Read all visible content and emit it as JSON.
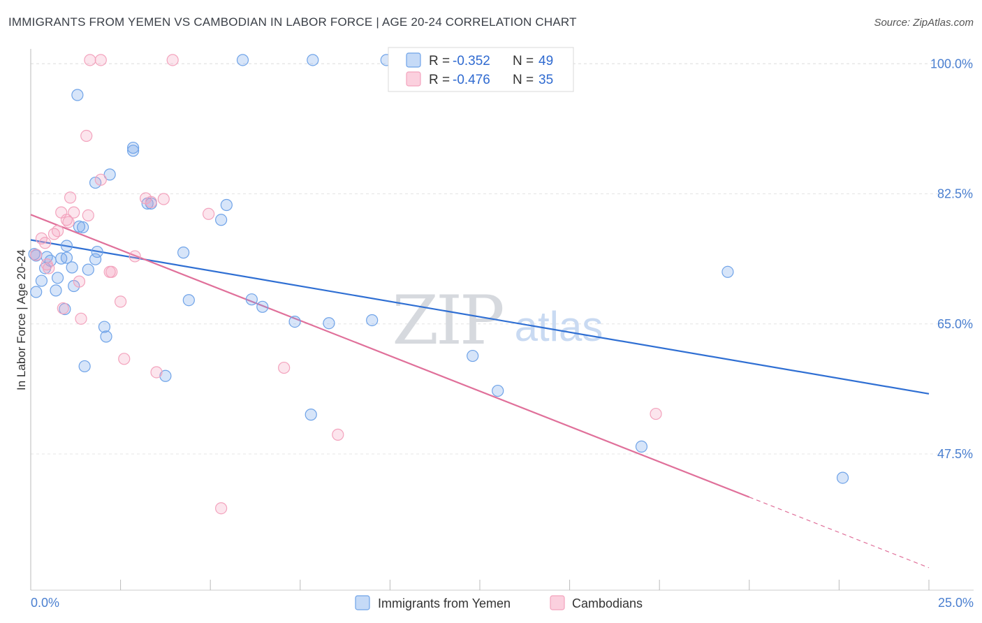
{
  "title": "IMMIGRANTS FROM YEMEN VS CAMBODIAN IN LABOR FORCE | AGE 20-24 CORRELATION CHART",
  "source": "Source: ZipAtlas.com",
  "watermark": {
    "zip": "ZIP",
    "atlas": "atlas"
  },
  "colors": {
    "blue": "#6fa3e8",
    "blue_line": "#2f6fd3",
    "pink": "#f3a3bd",
    "pink_line": "#e0709a",
    "tick": "#4a7fd0",
    "grid": "#e4e4e4"
  },
  "chart_data": {
    "type": "scatter",
    "title": "IMMIGRANTS FROM YEMEN VS CAMBODIAN IN LABOR FORCE | AGE 20-24 CORRELATION CHART",
    "ylabel": "In Labor Force | Age 20-24",
    "xlabel": "",
    "xlim": [
      0,
      25
    ],
    "ylim": [
      32,
      102
    ],
    "x_tick_labels": [
      "0.0%",
      "25.0%"
    ],
    "y_ticks": [
      47.5,
      65.0,
      82.5,
      100.0
    ],
    "y_tick_labels": [
      "47.5%",
      "65.0%",
      "82.5%",
      "100.0%"
    ],
    "grid": true,
    "legend_position": "top-center",
    "legend": [
      {
        "r_label": "R =",
        "r_value": "-0.352",
        "n_label": "N =",
        "n_value": "49"
      },
      {
        "r_label": "R =",
        "r_value": "-0.476",
        "n_label": "N =",
        "n_value": "35"
      }
    ],
    "series": [
      {
        "name": "Immigrants from Yemen",
        "color": "#6fa3e8",
        "trend": {
          "x": [
            0,
            25
          ],
          "y": [
            76.3,
            55.6
          ]
        },
        "points": [
          [
            0.15,
            74.2
          ],
          [
            0.15,
            69.3
          ],
          [
            0.3,
            70.8
          ],
          [
            0.4,
            72.5
          ],
          [
            0.45,
            74.0
          ],
          [
            0.55,
            73.5
          ],
          [
            0.7,
            69.5
          ],
          [
            0.75,
            71.2
          ],
          [
            0.85,
            73.8
          ],
          [
            0.95,
            67.0
          ],
          [
            1.0,
            73.9
          ],
          [
            1.0,
            75.5
          ],
          [
            1.15,
            72.6
          ],
          [
            1.2,
            70.1
          ],
          [
            1.3,
            95.8
          ],
          [
            1.35,
            78.1
          ],
          [
            1.45,
            78.0
          ],
          [
            1.5,
            59.3
          ],
          [
            1.6,
            72.3
          ],
          [
            1.8,
            73.7
          ],
          [
            1.8,
            84.0
          ],
          [
            1.85,
            74.7
          ],
          [
            2.05,
            64.6
          ],
          [
            2.1,
            63.3
          ],
          [
            2.2,
            85.1
          ],
          [
            2.85,
            88.3
          ],
          [
            2.85,
            88.7
          ],
          [
            3.25,
            81.2
          ],
          [
            3.35,
            81.2
          ],
          [
            3.75,
            58.0
          ],
          [
            4.25,
            74.6
          ],
          [
            4.4,
            68.2
          ],
          [
            5.3,
            79.0
          ],
          [
            5.45,
            81.0
          ],
          [
            5.9,
            100.5
          ],
          [
            6.15,
            68.3
          ],
          [
            6.45,
            67.3
          ],
          [
            7.35,
            65.3
          ],
          [
            7.85,
            100.5
          ],
          [
            8.3,
            65.1
          ],
          [
            7.8,
            52.8
          ],
          [
            9.5,
            65.5
          ],
          [
            9.9,
            100.5
          ],
          [
            12.3,
            60.7
          ],
          [
            13.0,
            56.0
          ],
          [
            17.0,
            48.5
          ],
          [
            19.4,
            72.0
          ],
          [
            22.6,
            44.3
          ],
          [
            0.1,
            74.4
          ]
        ]
      },
      {
        "name": "Cambodians",
        "color": "#f3a3bd",
        "trend": {
          "x": [
            0,
            25
          ],
          "y": [
            79.7,
            32.2
          ]
        },
        "trend_solid_until": 20.0,
        "points": [
          [
            0.15,
            74.3
          ],
          [
            0.3,
            76.5
          ],
          [
            0.4,
            75.9
          ],
          [
            0.45,
            73.0
          ],
          [
            0.5,
            72.5
          ],
          [
            0.65,
            77.1
          ],
          [
            0.75,
            77.5
          ],
          [
            0.85,
            80.0
          ],
          [
            0.9,
            67.1
          ],
          [
            1.0,
            79.0
          ],
          [
            1.05,
            78.7
          ],
          [
            1.1,
            82.0
          ],
          [
            1.2,
            80.0
          ],
          [
            1.35,
            70.7
          ],
          [
            1.4,
            65.7
          ],
          [
            1.55,
            90.3
          ],
          [
            1.6,
            79.6
          ],
          [
            1.65,
            100.5
          ],
          [
            1.95,
            100.5
          ],
          [
            1.95,
            84.4
          ],
          [
            2.2,
            72.0
          ],
          [
            2.25,
            72.0
          ],
          [
            2.5,
            68.0
          ],
          [
            2.6,
            60.3
          ],
          [
            2.9,
            74.1
          ],
          [
            3.2,
            81.9
          ],
          [
            3.35,
            81.4
          ],
          [
            3.5,
            58.5
          ],
          [
            3.7,
            81.8
          ],
          [
            3.95,
            100.5
          ],
          [
            4.95,
            79.8
          ],
          [
            5.3,
            40.2
          ],
          [
            7.05,
            59.1
          ],
          [
            8.55,
            50.1
          ],
          [
            17.4,
            52.9
          ]
        ]
      }
    ]
  }
}
